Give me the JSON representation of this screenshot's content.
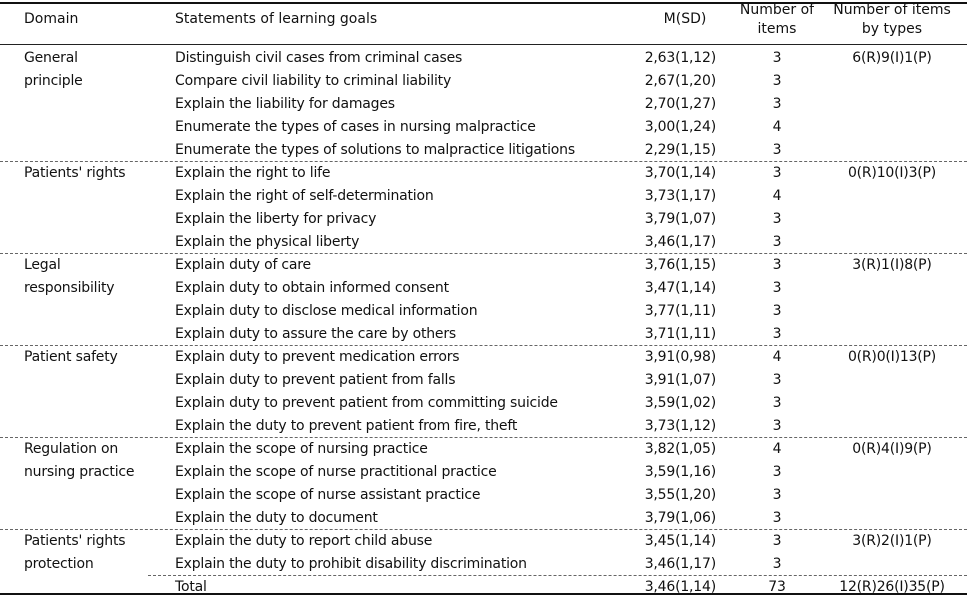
{
  "headers": {
    "domain": "Domain",
    "statements": "Statements of learning goals",
    "msd": "M(SD)",
    "num_items_1": "Number of",
    "num_items_2": "items",
    "by_types_1": "Number of   items",
    "by_types_2": "by types"
  },
  "groups": [
    {
      "domain": [
        "General",
        "principle"
      ],
      "types": "6(R)9(I)1(P)",
      "rows": [
        {
          "statement": "Distinguish civil cases from criminal cases",
          "msd": "2,63(1,12)",
          "n": "3"
        },
        {
          "statement": "Compare civil liability to criminal liability",
          "msd": "2,67(1,20)",
          "n": "3"
        },
        {
          "statement": "Explain the liability for damages",
          "msd": "2,70(1,27)",
          "n": "3"
        },
        {
          "statement": "Enumerate the types of cases in nursing malpractice",
          "msd": "3,00(1,24)",
          "n": "4"
        },
        {
          "statement": "Enumerate the types of solutions to malpractice litigations",
          "msd": "2,29(1,15)",
          "n": "3"
        }
      ]
    },
    {
      "domain": [
        "Patients'  rights"
      ],
      "types": "0(R)10(I)3(P)",
      "rows": [
        {
          "statement": "Explain the right to life",
          "msd": "3,70(1,14)",
          "n": "3"
        },
        {
          "statement": "Explain the right of self-determination",
          "msd": "3,73(1,17)",
          "n": "4"
        },
        {
          "statement": "Explain the liberty for privacy",
          "msd": "3,79(1,07)",
          "n": "3"
        },
        {
          "statement": "Explain the physical liberty",
          "msd": "3,46(1,17)",
          "n": "3"
        }
      ]
    },
    {
      "domain": [
        "Legal",
        "responsibility"
      ],
      "types": "3(R)1(I)8(P)",
      "rows": [
        {
          "statement": "Explain duty of care",
          "msd": "3,76(1,15)",
          "n": "3"
        },
        {
          "statement": "Explain duty to obtain informed consent",
          "msd": "3,47(1,14)",
          "n": "3"
        },
        {
          "statement": "Explain duty to disclose medical information",
          "msd": "3,77(1,11)",
          "n": "3"
        },
        {
          "statement": "Explain duty to assure the care by others",
          "msd": "3,71(1,11)",
          "n": "3"
        }
      ]
    },
    {
      "domain": [
        "Patient  safety"
      ],
      "types": "0(R)0(I)13(P)",
      "rows": [
        {
          "statement": "Explain duty to prevent medication errors",
          "msd": "3,91(0,98)",
          "n": "4"
        },
        {
          "statement": "Explain duty to prevent patient from falls",
          "msd": "3,91(1,07)",
          "n": "3"
        },
        {
          "statement": "Explain duty to prevent patient from committing suicide",
          "msd": "3,59(1,02)",
          "n": "3"
        },
        {
          "statement": "Explain the duty to prevent patient from fire, theft",
          "msd": "3,73(1,12)",
          "n": "3"
        }
      ]
    },
    {
      "domain": [
        "Regulation  on",
        "nursing practice"
      ],
      "types": "0(R)4(I)9(P)",
      "rows": [
        {
          "statement": "Explain the scope of nursing practice",
          "msd": "3,82(1,05)",
          "n": "4"
        },
        {
          "statement": "Explain the scope of nurse practitional practice",
          "msd": "3,59(1,16)",
          "n": "3"
        },
        {
          "statement": "Explain the scope of nurse assistant practice",
          "msd": "3,55(1,20)",
          "n": "3"
        },
        {
          "statement": "Explain the duty to document",
          "msd": "3,79(1,06)",
          "n": "3"
        }
      ]
    },
    {
      "domain": [
        "Patients'  rights",
        "protection"
      ],
      "types": "3(R)2(I)1(P)",
      "rows": [
        {
          "statement": "Explain the duty to report child abuse",
          "msd": "3,45(1,14)",
          "n": "3"
        },
        {
          "statement": "Explain the duty to prohibit disability discrimination",
          "msd": "3,46(1,17)",
          "n": "3"
        }
      ]
    }
  ],
  "total": {
    "label": "Total",
    "msd": "3,46(1,14)",
    "n": "73",
    "types": "12(R)26(I)35(P)"
  }
}
